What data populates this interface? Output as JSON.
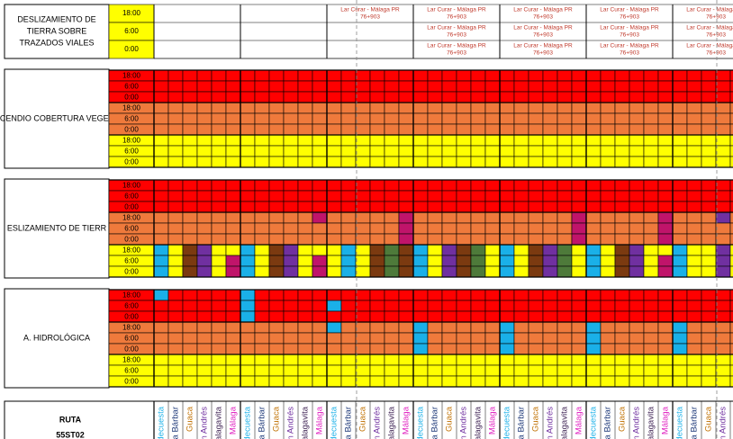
{
  "top_block": {
    "label_lines": [
      "DESLIZAMIENTO DE",
      "TIERRA SOBRE",
      "TRAZADOS VIALES"
    ],
    "times": [
      "18:00",
      "6:00",
      "0:00"
    ],
    "notes": [
      {
        "route": "Lar Curar - Málaga PR",
        "km": "76+903"
      },
      {
        "route": "Lar Curar - Málaga PR",
        "km": "76+903"
      },
      {
        "route": "Lar Curar - Málaga PR",
        "km": "76+903"
      },
      {
        "route": "Lar Curar - Málaga PR",
        "km": "76+903"
      },
      {
        "route": "Lar Curar - Málaga PR",
        "km": "76+903"
      },
      {
        "route": "Lar Curar - Málaga PR",
        "km": "76+903"
      },
      {
        "route": "Lar Curar - Málaga PR",
        "km": "76+903"
      },
      {
        "route": "Lar Curar - Málaga PR",
        "km": "76+903"
      },
      {
        "route": "Lar Curar - Málaga PR",
        "km": "76+903"
      },
      {
        "route": "Lar Curar - Málaga PR",
        "km": "76+903"
      },
      {
        "route": "Lar Curar - Málaga PR",
        "km": "76+903"
      },
      {
        "route": "Lar Curar - Málaga PR",
        "km": "76+903"
      },
      {
        "route": "Lar Curar - Málaga PR",
        "km": "76+903"
      }
    ]
  },
  "blocks": [
    {
      "label": "CENDIO COBERTURA VEGET",
      "times": [
        "18:00",
        "6:00",
        "0:00",
        "18:00",
        "6:00",
        "0:00",
        "18:00",
        "6:00",
        "0:00"
      ]
    },
    {
      "label": "ESLIZAMIENTO DE TIERR",
      "times": [
        "18:00",
        "6:00",
        "0:00",
        "18:00",
        "6:00",
        "0:00",
        "18:00",
        "6:00",
        "0:00"
      ]
    },
    {
      "label": "A. HIDROLÓGICA",
      "times": [
        "18:00",
        "6:00",
        "0:00",
        "18:00",
        "6:00",
        "0:00",
        "18:00",
        "6:00",
        "0:00"
      ]
    }
  ],
  "route_block": {
    "label_lines": [
      "RUTA",
      "55ST02"
    ],
    "column_headers": [
      "decuesta",
      "nta Bárbar",
      "Guaca",
      "n Andrés",
      "Malagavita",
      "Málaga"
    ]
  }
}
